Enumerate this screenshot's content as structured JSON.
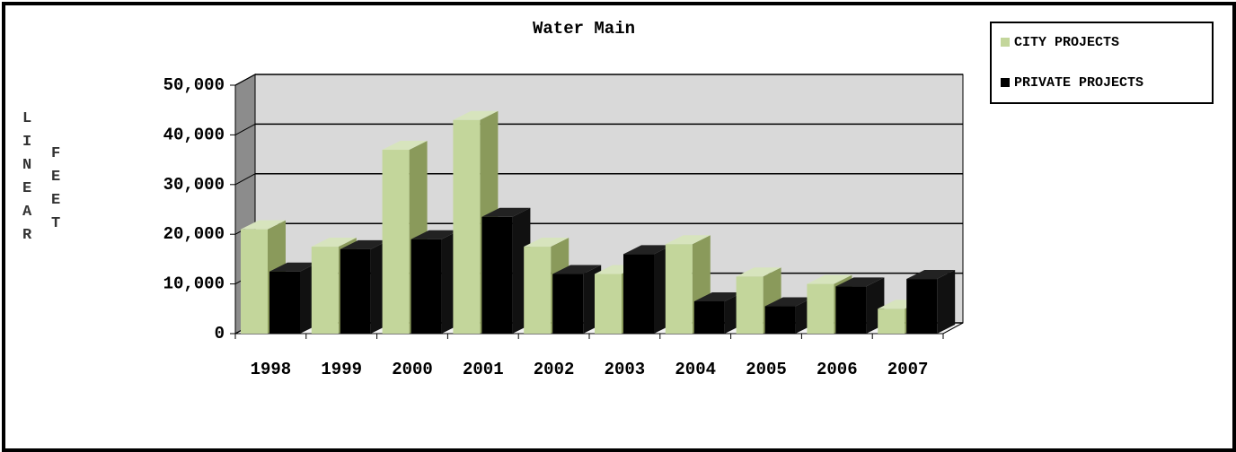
{
  "chart_data": {
    "type": "bar3d",
    "title": "Water Main",
    "y_label": "LINEAR",
    "y_label2": "FEET",
    "categories": [
      "1998",
      "1999",
      "2000",
      "2001",
      "2002",
      "2003",
      "2004",
      "2005",
      "2006",
      "2007"
    ],
    "series": [
      {
        "name": "CITY PROJECTS",
        "color": "#c3d69b",
        "values": [
          21000,
          17500,
          37000,
          43000,
          17500,
          12000,
          18000,
          11500,
          10000,
          5000
        ]
      },
      {
        "name": "PRIVATE PROJECTS",
        "color": "#000000",
        "values": [
          12500,
          17000,
          19000,
          23500,
          12000,
          16000,
          6500,
          5500,
          9500,
          11000
        ]
      }
    ],
    "ylim": [
      0,
      50000
    ],
    "yticks": [
      0,
      {
        "value": 10000,
        "label": "10,000"
      },
      {
        "value": 20000,
        "label": "20,000"
      },
      {
        "value": 30000,
        "label": "30,000"
      },
      {
        "value": 40000,
        "label": "40,000"
      },
      {
        "value": 50000,
        "label": "50,000"
      }
    ],
    "grid": true
  }
}
